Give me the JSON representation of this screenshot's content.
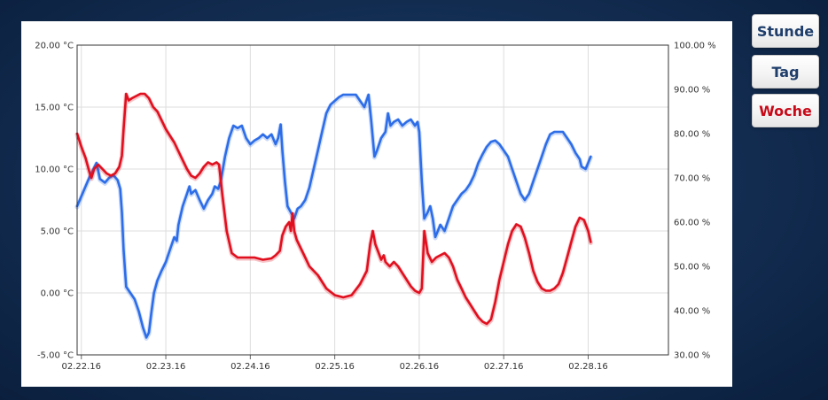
{
  "colors": {
    "temperature": "#2d6de8",
    "humidity": "#e0101f",
    "button_text_normal": "#1f3e6b",
    "button_text_active": "#c80a19"
  },
  "buttons": [
    {
      "label": "Stunde",
      "active": false
    },
    {
      "label": "Tag",
      "active": false
    },
    {
      "label": "Woche",
      "active": true
    }
  ],
  "chart_data": {
    "type": "line",
    "grid": true,
    "x_ticks": [
      "02.22.16",
      "02.23.16",
      "02.24.16",
      "02.25.16",
      "02.26.16",
      "02.27.16",
      "02.28.16"
    ],
    "x_range": [
      -0.05,
      6.95
    ],
    "y_left": {
      "range": [
        -5,
        20
      ],
      "ticks": [
        -5,
        0,
        5,
        10,
        15,
        20
      ],
      "tick_labels": [
        "-5.00 °C",
        "0.00 °C",
        "5.00 °C",
        "10.00 °C",
        "15.00 °C",
        "20.00 °C"
      ]
    },
    "y_right": {
      "range": [
        30,
        100
      ],
      "ticks": [
        30,
        40,
        50,
        60,
        70,
        80,
        90,
        100
      ],
      "tick_labels": [
        "30.00 %",
        "40.00 %",
        "50.00 %",
        "60.00 %",
        "70.00 %",
        "80.00 %",
        "90.00 %",
        "100.00 %"
      ]
    },
    "series": [
      {
        "axis": "left",
        "color": "#2d6de8",
        "points": [
          [
            -0.05,
            7.0
          ],
          [
            0.0,
            7.8
          ],
          [
            0.05,
            8.6
          ],
          [
            0.1,
            9.4
          ],
          [
            0.15,
            10.1
          ],
          [
            0.18,
            10.5
          ],
          [
            0.22,
            9.2
          ],
          [
            0.28,
            8.9
          ],
          [
            0.33,
            9.3
          ],
          [
            0.38,
            9.5
          ],
          [
            0.43,
            9.1
          ],
          [
            0.46,
            8.4
          ],
          [
            0.48,
            6.5
          ],
          [
            0.5,
            3.5
          ],
          [
            0.53,
            0.5
          ],
          [
            0.58,
            0.0
          ],
          [
            0.63,
            -0.5
          ],
          [
            0.68,
            -1.5
          ],
          [
            0.73,
            -2.8
          ],
          [
            0.77,
            -3.6
          ],
          [
            0.8,
            -3.2
          ],
          [
            0.83,
            -1.5
          ],
          [
            0.86,
            0.0
          ],
          [
            0.9,
            1.0
          ],
          [
            0.95,
            1.8
          ],
          [
            1.0,
            2.5
          ],
          [
            1.05,
            3.5
          ],
          [
            1.1,
            4.5
          ],
          [
            1.13,
            4.2
          ],
          [
            1.15,
            5.5
          ],
          [
            1.2,
            7.0
          ],
          [
            1.25,
            8.0
          ],
          [
            1.28,
            8.6
          ],
          [
            1.3,
            8.0
          ],
          [
            1.35,
            8.3
          ],
          [
            1.4,
            7.5
          ],
          [
            1.45,
            6.8
          ],
          [
            1.5,
            7.5
          ],
          [
            1.55,
            8.0
          ],
          [
            1.58,
            8.6
          ],
          [
            1.62,
            8.4
          ],
          [
            1.65,
            9.0
          ],
          [
            1.7,
            11.0
          ],
          [
            1.75,
            12.5
          ],
          [
            1.8,
            13.5
          ],
          [
            1.85,
            13.3
          ],
          [
            1.9,
            13.5
          ],
          [
            1.95,
            12.5
          ],
          [
            2.0,
            12.0
          ],
          [
            2.05,
            12.3
          ],
          [
            2.1,
            12.5
          ],
          [
            2.15,
            12.8
          ],
          [
            2.2,
            12.5
          ],
          [
            2.25,
            12.8
          ],
          [
            2.3,
            12.0
          ],
          [
            2.33,
            12.5
          ],
          [
            2.36,
            13.6
          ],
          [
            2.38,
            11.5
          ],
          [
            2.41,
            9.0
          ],
          [
            2.44,
            7.0
          ],
          [
            2.48,
            6.5
          ],
          [
            2.52,
            6.0
          ],
          [
            2.56,
            6.8
          ],
          [
            2.6,
            7.0
          ],
          [
            2.65,
            7.5
          ],
          [
            2.7,
            8.5
          ],
          [
            2.75,
            10.0
          ],
          [
            2.8,
            11.5
          ],
          [
            2.85,
            13.0
          ],
          [
            2.9,
            14.5
          ],
          [
            2.95,
            15.2
          ],
          [
            3.0,
            15.5
          ],
          [
            3.05,
            15.8
          ],
          [
            3.1,
            16.0
          ],
          [
            3.15,
            16.0
          ],
          [
            3.2,
            16.0
          ],
          [
            3.25,
            16.0
          ],
          [
            3.3,
            15.5
          ],
          [
            3.35,
            15.0
          ],
          [
            3.4,
            16.0
          ],
          [
            3.43,
            14.0
          ],
          [
            3.47,
            11.0
          ],
          [
            3.5,
            11.5
          ],
          [
            3.55,
            12.5
          ],
          [
            3.6,
            13.0
          ],
          [
            3.63,
            14.5
          ],
          [
            3.66,
            13.5
          ],
          [
            3.7,
            13.8
          ],
          [
            3.75,
            14.0
          ],
          [
            3.8,
            13.5
          ],
          [
            3.85,
            13.8
          ],
          [
            3.9,
            14.0
          ],
          [
            3.95,
            13.5
          ],
          [
            3.98,
            13.8
          ],
          [
            4.0,
            13.0
          ],
          [
            4.03,
            9.0
          ],
          [
            4.06,
            6.0
          ],
          [
            4.1,
            6.5
          ],
          [
            4.13,
            7.0
          ],
          [
            4.16,
            6.0
          ],
          [
            4.19,
            4.5
          ],
          [
            4.22,
            5.0
          ],
          [
            4.25,
            5.5
          ],
          [
            4.3,
            5.0
          ],
          [
            4.35,
            6.0
          ],
          [
            4.4,
            7.0
          ],
          [
            4.45,
            7.5
          ],
          [
            4.5,
            8.0
          ],
          [
            4.55,
            8.3
          ],
          [
            4.6,
            8.8
          ],
          [
            4.65,
            9.5
          ],
          [
            4.7,
            10.5
          ],
          [
            4.75,
            11.2
          ],
          [
            4.8,
            11.8
          ],
          [
            4.85,
            12.2
          ],
          [
            4.9,
            12.3
          ],
          [
            4.95,
            12.0
          ],
          [
            5.0,
            11.5
          ],
          [
            5.05,
            11.0
          ],
          [
            5.1,
            10.0
          ],
          [
            5.15,
            9.0
          ],
          [
            5.2,
            8.0
          ],
          [
            5.25,
            7.5
          ],
          [
            5.3,
            8.0
          ],
          [
            5.35,
            9.0
          ],
          [
            5.4,
            10.0
          ],
          [
            5.45,
            11.0
          ],
          [
            5.5,
            12.0
          ],
          [
            5.55,
            12.8
          ],
          [
            5.6,
            13.0
          ],
          [
            5.65,
            13.0
          ],
          [
            5.7,
            13.0
          ],
          [
            5.75,
            12.5
          ],
          [
            5.8,
            12.0
          ],
          [
            5.85,
            11.3
          ],
          [
            5.9,
            10.8
          ],
          [
            5.92,
            10.2
          ],
          [
            5.97,
            10.0
          ],
          [
            6.0,
            10.5
          ],
          [
            6.03,
            11.0
          ]
        ]
      },
      {
        "axis": "right",
        "color": "#e0101f",
        "points": [
          [
            -0.05,
            80.0
          ],
          [
            0.0,
            77.0
          ],
          [
            0.05,
            74.5
          ],
          [
            0.1,
            71.0
          ],
          [
            0.12,
            70.0
          ],
          [
            0.15,
            72.0
          ],
          [
            0.2,
            73.0
          ],
          [
            0.25,
            72.0
          ],
          [
            0.3,
            71.0
          ],
          [
            0.35,
            70.5
          ],
          [
            0.4,
            71.0
          ],
          [
            0.45,
            72.5
          ],
          [
            0.48,
            75.0
          ],
          [
            0.5,
            81.0
          ],
          [
            0.53,
            89.0
          ],
          [
            0.56,
            87.5
          ],
          [
            0.6,
            88.0
          ],
          [
            0.65,
            88.5
          ],
          [
            0.7,
            89.0
          ],
          [
            0.75,
            89.0
          ],
          [
            0.8,
            88.0
          ],
          [
            0.85,
            86.0
          ],
          [
            0.9,
            85.0
          ],
          [
            0.95,
            83.0
          ],
          [
            1.0,
            81.0
          ],
          [
            1.05,
            79.5
          ],
          [
            1.1,
            78.0
          ],
          [
            1.15,
            76.0
          ],
          [
            1.2,
            74.0
          ],
          [
            1.25,
            72.0
          ],
          [
            1.3,
            70.5
          ],
          [
            1.35,
            70.0
          ],
          [
            1.4,
            71.0
          ],
          [
            1.45,
            72.5
          ],
          [
            1.5,
            73.5
          ],
          [
            1.55,
            73.0
          ],
          [
            1.6,
            73.5
          ],
          [
            1.63,
            73.0
          ],
          [
            1.67,
            66.0
          ],
          [
            1.72,
            58.0
          ],
          [
            1.78,
            53.0
          ],
          [
            1.85,
            52.0
          ],
          [
            1.95,
            52.0
          ],
          [
            2.05,
            52.0
          ],
          [
            2.15,
            51.5
          ],
          [
            2.25,
            51.8
          ],
          [
            2.3,
            52.5
          ],
          [
            2.35,
            53.5
          ],
          [
            2.38,
            57.0
          ],
          [
            2.42,
            59.0
          ],
          [
            2.46,
            60.0
          ],
          [
            2.48,
            58.0
          ],
          [
            2.5,
            62.0
          ],
          [
            2.52,
            58.0
          ],
          [
            2.55,
            56.0
          ],
          [
            2.6,
            54.0
          ],
          [
            2.65,
            52.0
          ],
          [
            2.7,
            50.0
          ],
          [
            2.8,
            48.0
          ],
          [
            2.9,
            45.0
          ],
          [
            3.0,
            43.5
          ],
          [
            3.1,
            43.0
          ],
          [
            3.2,
            43.5
          ],
          [
            3.3,
            46.0
          ],
          [
            3.38,
            49.0
          ],
          [
            3.42,
            55.0
          ],
          [
            3.45,
            58.0
          ],
          [
            3.48,
            55.0
          ],
          [
            3.52,
            53.0
          ],
          [
            3.55,
            51.5
          ],
          [
            3.58,
            52.5
          ],
          [
            3.6,
            51.0
          ],
          [
            3.65,
            50.0
          ],
          [
            3.7,
            51.0
          ],
          [
            3.75,
            50.0
          ],
          [
            3.8,
            48.5
          ],
          [
            3.85,
            47.0
          ],
          [
            3.9,
            45.5
          ],
          [
            3.95,
            44.5
          ],
          [
            4.0,
            44.0
          ],
          [
            4.03,
            45.0
          ],
          [
            4.06,
            58.0
          ],
          [
            4.1,
            53.0
          ],
          [
            4.15,
            51.0
          ],
          [
            4.2,
            52.0
          ],
          [
            4.25,
            52.5
          ],
          [
            4.3,
            53.0
          ],
          [
            4.35,
            52.0
          ],
          [
            4.4,
            50.0
          ],
          [
            4.45,
            47.0
          ],
          [
            4.5,
            45.0
          ],
          [
            4.55,
            43.0
          ],
          [
            4.6,
            41.5
          ],
          [
            4.65,
            40.0
          ],
          [
            4.7,
            38.5
          ],
          [
            4.75,
            37.5
          ],
          [
            4.8,
            37.0
          ],
          [
            4.85,
            38.0
          ],
          [
            4.9,
            42.0
          ],
          [
            4.95,
            47.0
          ],
          [
            5.0,
            51.0
          ],
          [
            5.05,
            55.0
          ],
          [
            5.1,
            58.0
          ],
          [
            5.15,
            59.5
          ],
          [
            5.2,
            59.0
          ],
          [
            5.25,
            56.5
          ],
          [
            5.3,
            53.0
          ],
          [
            5.35,
            49.0
          ],
          [
            5.4,
            46.5
          ],
          [
            5.45,
            45.0
          ],
          [
            5.5,
            44.5
          ],
          [
            5.55,
            44.5
          ],
          [
            5.6,
            45.0
          ],
          [
            5.65,
            46.0
          ],
          [
            5.7,
            48.5
          ],
          [
            5.75,
            52.0
          ],
          [
            5.8,
            55.5
          ],
          [
            5.85,
            59.0
          ],
          [
            5.9,
            61.0
          ],
          [
            5.95,
            60.5
          ],
          [
            6.0,
            58.0
          ],
          [
            6.03,
            55.5
          ]
        ]
      }
    ]
  }
}
